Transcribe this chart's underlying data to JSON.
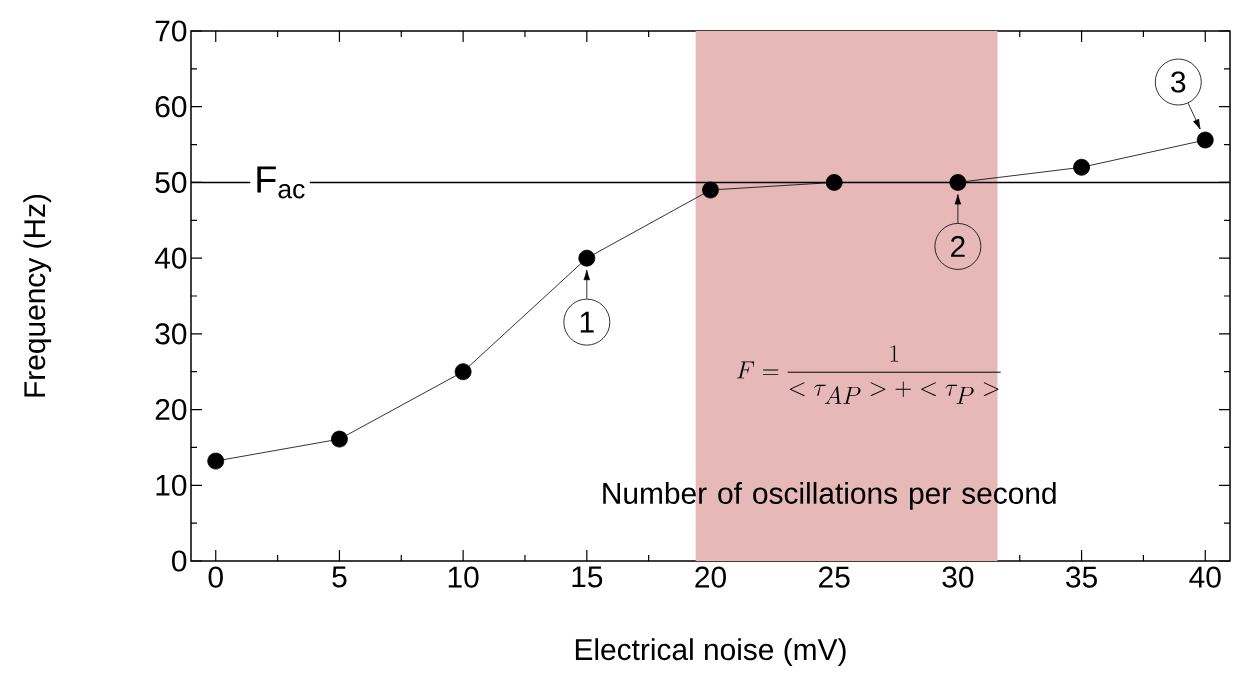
{
  "chart_data": {
    "type": "line",
    "xlabel": "Electrical noise (mV)",
    "ylabel": "Frequency (Hz)",
    "x": [
      0,
      5,
      10,
      15,
      20,
      25,
      30,
      35,
      40
    ],
    "values": [
      13.2,
      16.1,
      25,
      40,
      49,
      50,
      50,
      52,
      55.6
    ],
    "color": "#000000",
    "marker": "circle",
    "line_style": "solid",
    "grid": false,
    "xlim": [
      -1,
      41
    ],
    "ylim": [
      0,
      70
    ],
    "xticks": [
      0,
      5,
      10,
      15,
      20,
      25,
      30,
      35,
      40
    ],
    "yticks": [
      0,
      10,
      20,
      30,
      40,
      50,
      60,
      70
    ],
    "ref_lines": [
      {
        "axis": "y",
        "value": 50,
        "label": "F$_{ac}$",
        "color": "#000000"
      }
    ],
    "bands": [
      {
        "axis": "x",
        "from": 19.4,
        "to": 31.6,
        "color": "#e6b8b7"
      }
    ],
    "annotations": [
      {
        "text": "1",
        "x": 15,
        "y": 40
      },
      {
        "text": "2",
        "x": 30,
        "y": 50
      },
      {
        "text": "3",
        "x": 40,
        "y": 55.6
      },
      "F=\\frac{1}{<\\tau_{AP}>+<\\tau_{P}>}",
      "Number of oscillations per second"
    ]
  }
}
